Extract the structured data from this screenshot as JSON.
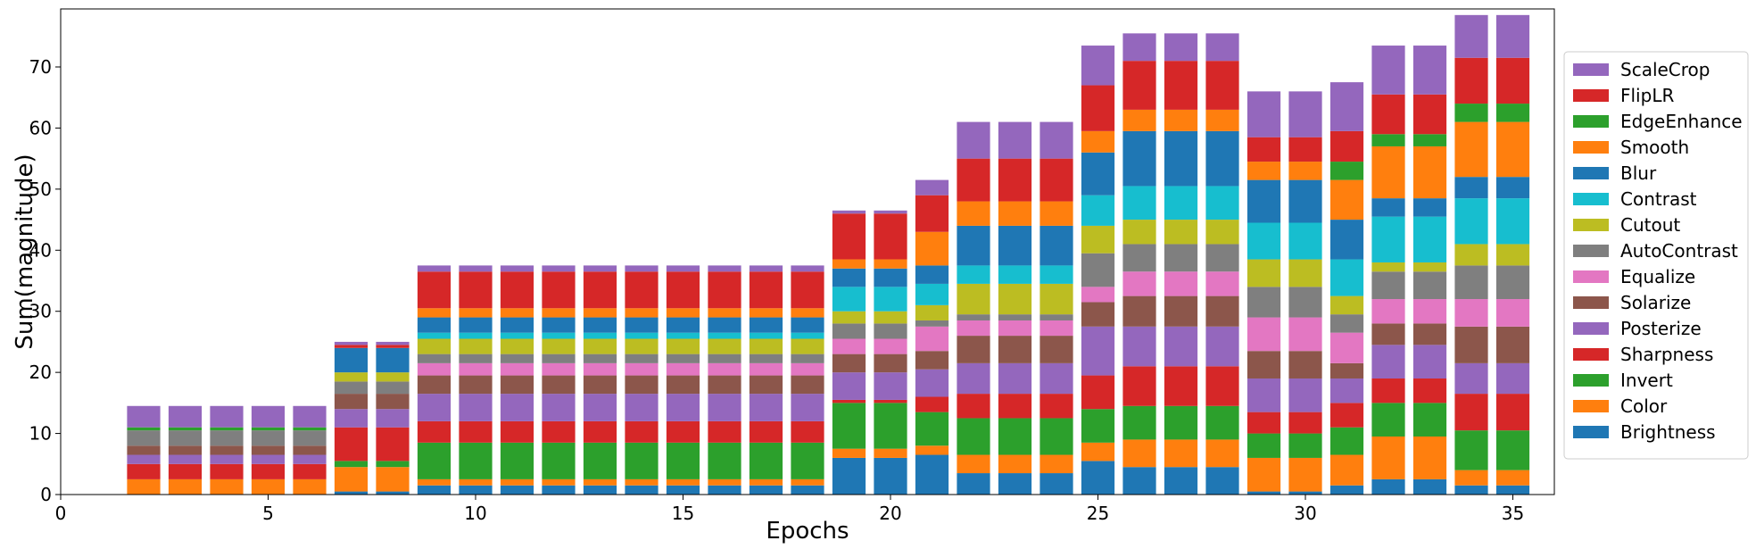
{
  "chart_data": {
    "type": "bar",
    "stacked": true,
    "xlabel": "Epochs",
    "ylabel": "Sum(magnitude)",
    "xlim": [
      0,
      36
    ],
    "ylim": [
      0,
      79.5
    ],
    "xticks": [
      0,
      5,
      10,
      15,
      20,
      25,
      30,
      35
    ],
    "yticks": [
      0,
      10,
      20,
      30,
      40,
      50,
      60,
      70
    ],
    "legend_position": "right",
    "x": [
      2,
      3,
      4,
      5,
      6,
      7,
      8,
      9,
      10,
      11,
      12,
      13,
      14,
      15,
      16,
      17,
      18,
      19,
      20,
      21,
      22,
      23,
      24,
      25,
      26,
      27,
      28,
      29,
      30,
      31,
      32,
      33,
      34,
      35
    ],
    "series": [
      {
        "name": "Brightness",
        "color": "#1f77b4",
        "values": [
          0,
          0,
          0,
          0,
          0,
          0.5,
          0.5,
          1.5,
          1.5,
          1.5,
          1.5,
          1.5,
          1.5,
          1.5,
          1.5,
          1.5,
          1.5,
          6,
          6,
          6.5,
          3.5,
          3.5,
          3.5,
          5.5,
          4.5,
          4.5,
          4.5,
          0.5,
          0.5,
          1.5,
          2.5,
          2.5,
          1.5,
          1.5
        ]
      },
      {
        "name": "Color",
        "color": "#ff7f0e",
        "values": [
          2.5,
          2.5,
          2.5,
          2.5,
          2.5,
          4,
          4,
          1,
          1,
          1,
          1,
          1,
          1,
          1,
          1,
          1,
          1,
          1.5,
          1.5,
          1.5,
          3,
          3,
          3,
          3,
          4.5,
          4.5,
          4.5,
          5.5,
          5.5,
          5,
          7,
          7,
          2.5,
          2.5
        ]
      },
      {
        "name": "Invert",
        "color": "#2ca02c",
        "values": [
          0,
          0,
          0,
          0,
          0,
          1,
          1,
          6,
          6,
          6,
          6,
          6,
          6,
          6,
          6,
          6,
          6,
          7.5,
          7.5,
          5.5,
          6,
          6,
          6,
          5.5,
          5.5,
          5.5,
          5.5,
          4,
          4,
          4.5,
          5.5,
          5.5,
          6.5,
          6.5
        ]
      },
      {
        "name": "Sharpness",
        "color": "#d62728",
        "values": [
          2.5,
          2.5,
          2.5,
          2.5,
          2.5,
          5.5,
          5.5,
          3.5,
          3.5,
          3.5,
          3.5,
          3.5,
          3.5,
          3.5,
          3.5,
          3.5,
          3.5,
          0.5,
          0.5,
          2.5,
          4,
          4,
          4,
          5.5,
          6.5,
          6.5,
          6.5,
          3.5,
          3.5,
          4,
          4,
          4,
          6,
          6
        ]
      },
      {
        "name": "Posterize",
        "color": "#9467bd",
        "values": [
          1.5,
          1.5,
          1.5,
          1.5,
          1.5,
          3,
          3,
          4.5,
          4.5,
          4.5,
          4.5,
          4.5,
          4.5,
          4.5,
          4.5,
          4.5,
          4.5,
          4.5,
          4.5,
          4.5,
          5,
          5,
          5,
          8,
          6.5,
          6.5,
          6.5,
          5.5,
          5.5,
          4,
          5.5,
          5.5,
          5,
          5
        ]
      },
      {
        "name": "Solarize",
        "color": "#8c564b",
        "values": [
          1.5,
          1.5,
          1.5,
          1.5,
          1.5,
          2.5,
          2.5,
          3,
          3,
          3,
          3,
          3,
          3,
          3,
          3,
          3,
          3,
          3,
          3,
          3,
          4.5,
          4.5,
          4.5,
          4,
          5,
          5,
          5,
          4.5,
          4.5,
          2.5,
          3.5,
          3.5,
          6,
          6
        ]
      },
      {
        "name": "Equalize",
        "color": "#e377c2",
        "values": [
          0,
          0,
          0,
          0,
          0,
          0,
          0,
          2,
          2,
          2,
          2,
          2,
          2,
          2,
          2,
          2,
          2,
          2.5,
          2.5,
          4,
          2.5,
          2.5,
          2.5,
          2.5,
          4,
          4,
          4,
          5.5,
          5.5,
          5,
          4,
          4,
          4.5,
          4.5
        ]
      },
      {
        "name": "AutoContrast",
        "color": "#7f7f7f",
        "values": [
          2.5,
          2.5,
          2.5,
          2.5,
          2.5,
          2,
          2,
          1.5,
          1.5,
          1.5,
          1.5,
          1.5,
          1.5,
          1.5,
          1.5,
          1.5,
          1.5,
          2.5,
          2.5,
          1,
          1,
          1,
          1,
          5.5,
          4.5,
          4.5,
          4.5,
          5,
          5,
          3,
          4.5,
          4.5,
          5.5,
          5.5
        ]
      },
      {
        "name": "Cutout",
        "color": "#bcbd22",
        "values": [
          0,
          0,
          0,
          0,
          0,
          1.5,
          1.5,
          2.5,
          2.5,
          2.5,
          2.5,
          2.5,
          2.5,
          2.5,
          2.5,
          2.5,
          2.5,
          2,
          2,
          2.5,
          5,
          5,
          5,
          4.5,
          4,
          4,
          4,
          4.5,
          4.5,
          3,
          1.5,
          1.5,
          3.5,
          3.5
        ]
      },
      {
        "name": "Contrast",
        "color": "#17becf",
        "values": [
          0,
          0,
          0,
          0,
          0,
          0,
          0,
          1,
          1,
          1,
          1,
          1,
          1,
          1,
          1,
          1,
          1,
          4,
          4,
          3.5,
          3,
          3,
          3,
          5,
          5.5,
          5.5,
          5.5,
          6,
          6,
          6,
          7.5,
          7.5,
          7.5,
          7.5
        ]
      },
      {
        "name": "Blur",
        "color": "#1f77b4",
        "values": [
          0,
          0,
          0,
          0,
          0,
          4,
          4,
          2.5,
          2.5,
          2.5,
          2.5,
          2.5,
          2.5,
          2.5,
          2.5,
          2.5,
          2.5,
          3,
          3,
          3,
          6.5,
          6.5,
          6.5,
          7,
          9,
          9,
          9,
          7,
          7,
          6.5,
          3,
          3,
          3.5,
          3.5
        ]
      },
      {
        "name": "Smooth",
        "color": "#ff7f0e",
        "values": [
          0,
          0,
          0,
          0,
          0,
          0,
          0,
          1.5,
          1.5,
          1.5,
          1.5,
          1.5,
          1.5,
          1.5,
          1.5,
          1.5,
          1.5,
          1.5,
          1.5,
          5.5,
          4,
          4,
          4,
          3.5,
          3.5,
          3.5,
          3.5,
          3,
          3,
          6.5,
          8.5,
          8.5,
          9,
          9
        ]
      },
      {
        "name": "EdgeEnhance",
        "color": "#2ca02c",
        "values": [
          0.5,
          0.5,
          0.5,
          0.5,
          0.5,
          0,
          0,
          0,
          0,
          0,
          0,
          0,
          0,
          0,
          0,
          0,
          0,
          0,
          0,
          0,
          0,
          0,
          0,
          0,
          0,
          0,
          0,
          0,
          0,
          3,
          2,
          2,
          3,
          3
        ]
      },
      {
        "name": "FlipLR",
        "color": "#d62728",
        "values": [
          0,
          0,
          0,
          0,
          0,
          0.5,
          0.5,
          6,
          6,
          6,
          6,
          6,
          6,
          6,
          6,
          6,
          6,
          7.5,
          7.5,
          6,
          7,
          7,
          7,
          7.5,
          8,
          8,
          8,
          4,
          4,
          5,
          6.5,
          6.5,
          7.5,
          7.5
        ]
      },
      {
        "name": "ScaleCrop",
        "color": "#9467bd",
        "values": [
          3.5,
          3.5,
          3.5,
          3.5,
          3.5,
          0.5,
          0.5,
          1,
          1,
          1,
          1,
          1,
          1,
          1,
          1,
          1,
          1,
          0.5,
          0.5,
          2.5,
          6,
          6,
          6,
          6.5,
          4.5,
          4.5,
          4.5,
          7.5,
          7.5,
          8,
          8,
          8,
          7,
          7
        ]
      }
    ]
  }
}
